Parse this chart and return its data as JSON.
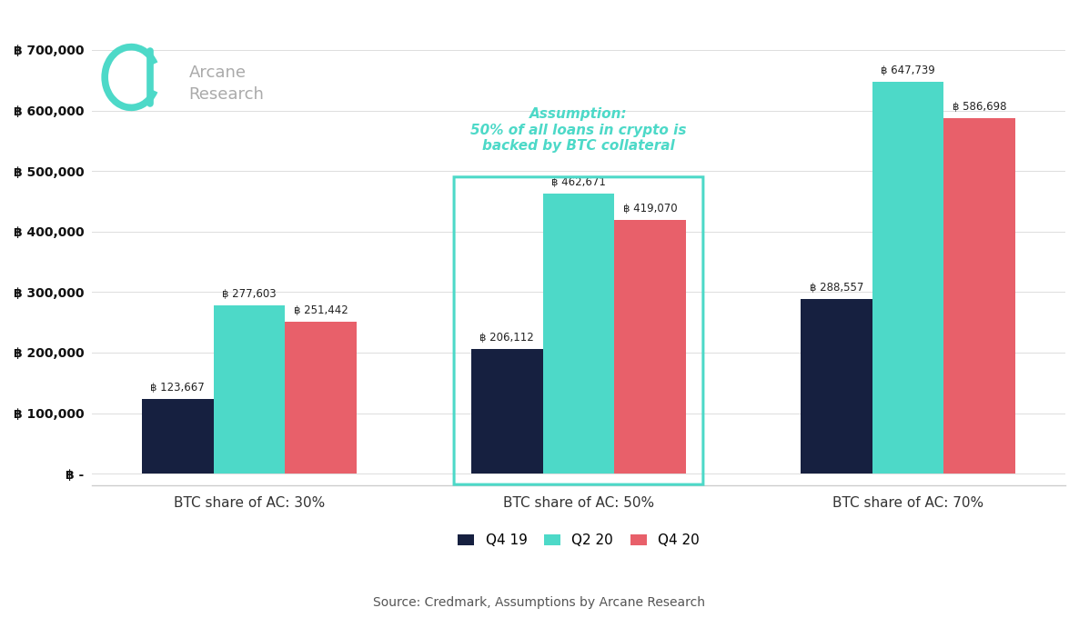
{
  "groups": [
    "BTC share of AC: 30%",
    "BTC share of AC: 50%",
    "BTC share of AC: 70%"
  ],
  "series": {
    "Q4 19": [
      123667,
      206112,
      288557
    ],
    "Q2 20": [
      277603,
      462671,
      647739
    ],
    "Q4 20": [
      251442,
      419070,
      586698
    ]
  },
  "colors": {
    "Q4 19": "#162040",
    "Q2 20": "#4dd9c8",
    "Q4 20": "#e8606a"
  },
  "bar_labels": {
    "Q4 19": [
      "฿ 123,667",
      "฿ 206,112",
      "฿ 288,557"
    ],
    "Q2 20": [
      "฿ 277,603",
      "฿ 462,671",
      "฿ 647,739"
    ],
    "Q4 20": [
      "฿ 251,442",
      "฿ 419,070",
      "฿ 586,698"
    ]
  },
  "ylabel_ticks": [
    0,
    100000,
    200000,
    300000,
    400000,
    500000,
    600000,
    700000
  ],
  "ylabel_labels": [
    "฿ -",
    "฿ 100,000",
    "฿ 200,000",
    "฿ 300,000",
    "฿ 400,000",
    "฿ 500,000",
    "฿ 600,000",
    "฿ 700,000"
  ],
  "assumption_text": "Assumption:\n50% of all loans in crypto is\nbacked by BTC collateral",
  "assumption_color": "#4dd9c8",
  "source_text": "Source: Credmark, Assumptions by Arcane Research",
  "background_color": "#ffffff",
  "logo_text": "Arcane\nResearch",
  "logo_color": "#aaaaaa",
  "logo_teal": "#4dd9c8",
  "highlight_group_index": 1,
  "x_positions": [
    0.0,
    1.15,
    2.3
  ],
  "bar_width": 0.25,
  "group_offsets": [
    -0.25,
    0.0,
    0.25
  ]
}
